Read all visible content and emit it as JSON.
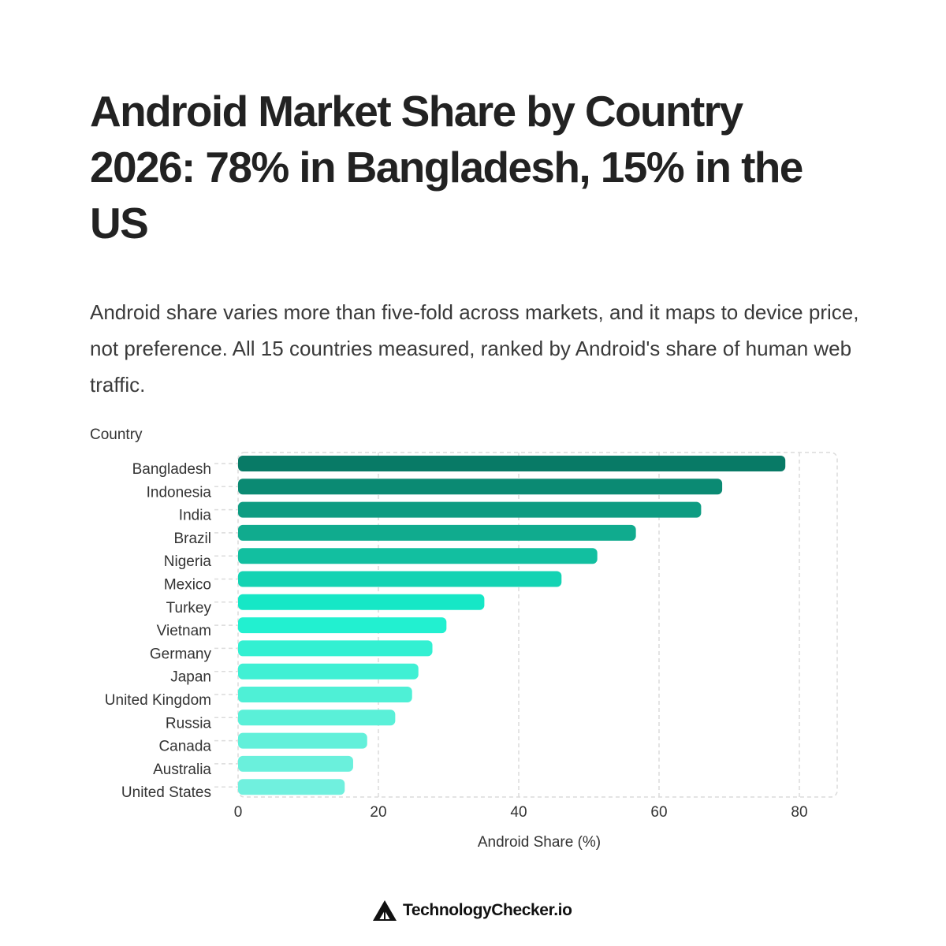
{
  "header": {
    "title": "Android Market Share by Country 2026: 78% in Bangladesh, 15% in the US",
    "subtitle": "Android share varies more than five-fold across markets, and it maps to device price, not preference. All 15 countries measured, ranked by Android's share of human web traffic."
  },
  "chart_data": {
    "type": "bar",
    "orientation": "horizontal",
    "title": "",
    "ylabel": "Country",
    "xlabel": "Android Share (%)",
    "xlim": [
      0,
      85
    ],
    "xticks": [
      0,
      20,
      40,
      60,
      80
    ],
    "grid": true,
    "categories": [
      "Bangladesh",
      "Indonesia",
      "India",
      "Brazil",
      "Nigeria",
      "Mexico",
      "Turkey",
      "Vietnam",
      "Germany",
      "Japan",
      "United Kingdom",
      "Russia",
      "Canada",
      "Australia",
      "United States"
    ],
    "values": [
      78,
      69,
      66,
      56.7,
      51.2,
      46.1,
      35.1,
      29.7,
      27.7,
      25.7,
      24.8,
      22.4,
      18.4,
      16.4,
      15.2
    ],
    "colors": [
      "#087a66",
      "#0b8a73",
      "#0e9c82",
      "#10ab8e",
      "#12bfa0",
      "#14d3b3",
      "#16e7c6",
      "#22f0d0",
      "#33f0d2",
      "#40f0d4",
      "#4ef0d6",
      "#5af0d8",
      "#62f0da",
      "#6af0dc",
      "#70f0de"
    ]
  },
  "footer": {
    "brand": "TechnologyChecker.io",
    "logo_icon": "triangle-logo-icon"
  }
}
